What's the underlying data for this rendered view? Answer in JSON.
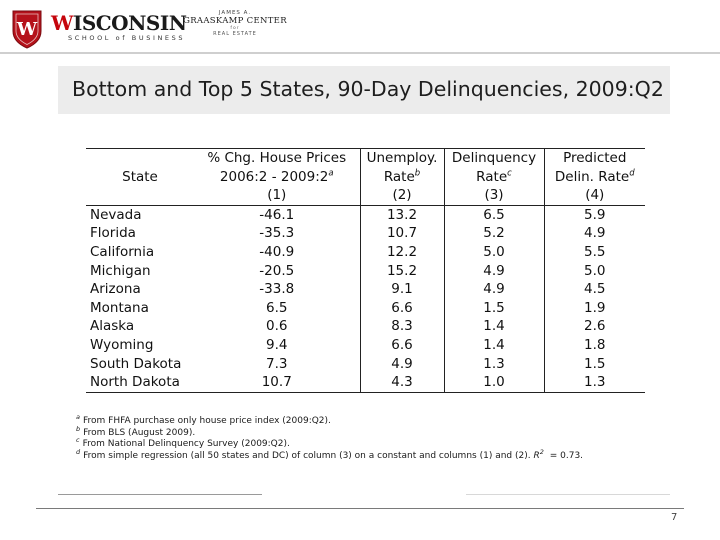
{
  "header": {
    "school_name_initial": "W",
    "school_name_rest": "ISCONSIN",
    "school_subtitle": "SCHOOL of BUSINESS",
    "center_line1": "JAMES A.",
    "center_line2": "GRAASKAMP CENTER",
    "center_line3": "for",
    "center_line4": "REAL ESTATE",
    "crest_letter": "W",
    "crest_color": "#b5121b"
  },
  "slide": {
    "title": "Bottom and Top 5 States, 90-Day Delinquencies, 2009:Q2",
    "page_number": "7"
  },
  "table": {
    "header": {
      "state_label": "State",
      "price_line1": "% Chg. House Prices",
      "price_line2": "2006:2 - 2009:2",
      "price_sup": "a",
      "price_num": "(1)",
      "unemp_line1": "Unemploy.",
      "unemp_line2": "Rate",
      "unemp_sup": "b",
      "unemp_num": "(2)",
      "delq_line1": "Delinquency",
      "delq_line2": "Rate",
      "delq_sup": "c",
      "delq_num": "(3)",
      "pred_line1": "Predicted",
      "pred_line2": "Delin. Rate",
      "pred_sup": "d",
      "pred_num": "(4)"
    },
    "rows": [
      {
        "state": "Nevada",
        "price": "-46.1",
        "unemp": "13.2",
        "delq": "6.5",
        "pred": "5.9"
      },
      {
        "state": "Florida",
        "price": "-35.3",
        "unemp": "10.7",
        "delq": "5.2",
        "pred": "4.9"
      },
      {
        "state": "California",
        "price": "-40.9",
        "unemp": "12.2",
        "delq": "5.0",
        "pred": "5.5"
      },
      {
        "state": "Michigan",
        "price": "-20.5",
        "unemp": "15.2",
        "delq": "4.9",
        "pred": "5.0"
      },
      {
        "state": "Arizona",
        "price": "-33.8",
        "unemp": "9.1",
        "delq": "4.9",
        "pred": "4.5"
      },
      {
        "state": "Montana",
        "price": "6.5",
        "unemp": "6.6",
        "delq": "1.5",
        "pred": "1.9"
      },
      {
        "state": "Alaska",
        "price": "0.6",
        "unemp": "8.3",
        "delq": "1.4",
        "pred": "2.6"
      },
      {
        "state": "Wyoming",
        "price": "9.4",
        "unemp": "6.6",
        "delq": "1.4",
        "pred": "1.8"
      },
      {
        "state": "South Dakota",
        "price": "7.3",
        "unemp": "4.9",
        "delq": "1.3",
        "pred": "1.5"
      },
      {
        "state": "North Dakota",
        "price": "10.7",
        "unemp": "4.3",
        "delq": "1.0",
        "pred": "1.3"
      }
    ]
  },
  "footnotes": [
    {
      "mark": "a",
      "text": "From FHFA purchase only house price index (2009:Q2)."
    },
    {
      "mark": "b",
      "text": "From BLS (August 2009)."
    },
    {
      "mark": "c",
      "text": "From National Delinquency Survey (2009:Q2)."
    },
    {
      "mark": "d",
      "text": "From simple regression (all 50 states and DC) of column (3) on a constant and columns (1) and (2).",
      "r2_label": "R",
      "r2_sup": "2",
      "r2_value": " = 0.73."
    }
  ]
}
